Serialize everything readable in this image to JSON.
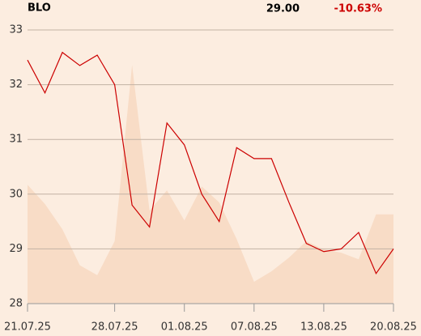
{
  "header": {
    "symbol": "BLO",
    "price": "29.00",
    "change": "-10.63%"
  },
  "chart_data": {
    "type": "line",
    "categories": [
      "21.07.25",
      null,
      null,
      null,
      null,
      "28.07.25",
      null,
      null,
      null,
      "01.08.25",
      null,
      null,
      null,
      "07.08.25",
      null,
      null,
      null,
      "13.08.25",
      null,
      null,
      null,
      "20.08.25"
    ],
    "series": [
      {
        "color": "#f8dcc6",
        "fill": true,
        "values": [
          30.17,
          29.82,
          29.36,
          28.7,
          28.52,
          29.14,
          32.36,
          29.7,
          30.07,
          29.52,
          30.14,
          29.85,
          29.18,
          28.4,
          28.59,
          28.84,
          29.14,
          28.99,
          28.93,
          28.81,
          29.63,
          29.63
        ]
      },
      {
        "color": "#cc0000",
        "fill": false,
        "values": [
          32.45,
          31.85,
          32.59,
          32.35,
          32.54,
          32.0,
          29.8,
          29.4,
          31.3,
          30.9,
          30.0,
          29.5,
          30.85,
          30.65,
          30.65,
          29.85,
          29.1,
          28.95,
          29.0,
          29.3,
          28.55,
          29.0
        ]
      }
    ],
    "ylim": [
      28,
      33
    ],
    "yticks": [
      28,
      29,
      30,
      31,
      32,
      33
    ],
    "grid": true
  }
}
